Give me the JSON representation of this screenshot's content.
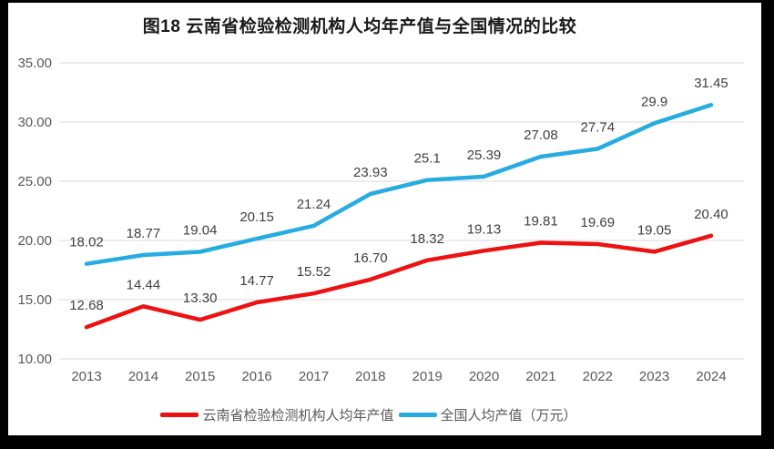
{
  "frame": {
    "border_color": "#000000",
    "background": "#ffffff"
  },
  "chart_data": {
    "type": "line",
    "title": "图18  云南省检验检测机构人均年产值与全国情况的比较",
    "xlabel": "",
    "ylabel": "",
    "categories": [
      "2013",
      "2014",
      "2015",
      "2016",
      "2017",
      "2018",
      "2019",
      "2020",
      "2021",
      "2022",
      "2023",
      "2024"
    ],
    "series": [
      {
        "name": "云南省检验检测机构人均年产值",
        "color": "#ED1111",
        "values": [
          12.68,
          14.44,
          13.3,
          14.77,
          15.52,
          16.7,
          18.32,
          19.13,
          19.81,
          19.69,
          19.05,
          20.4
        ],
        "labels": [
          "12.68",
          "14.44",
          "13.30",
          "14.77",
          "15.52",
          "16.70",
          "18.32",
          "19.13",
          "19.81",
          "19.69",
          "19.05",
          "20.40"
        ]
      },
      {
        "name": "全国人均产值（万元）",
        "color": "#27ACE2",
        "values": [
          18.02,
          18.77,
          19.04,
          20.15,
          21.24,
          23.93,
          25.1,
          25.39,
          27.08,
          27.74,
          29.9,
          31.45
        ],
        "labels": [
          "18.02",
          "18.77",
          "19.04",
          "20.15",
          "21.24",
          "23.93",
          "25.1",
          "25.39",
          "27.08",
          "27.74",
          "29.9",
          "31.45"
        ]
      }
    ],
    "ylim": [
      10,
      35
    ],
    "y_ticks": [
      {
        "value": 10,
        "label": "10.00"
      },
      {
        "value": 15,
        "label": "15.00"
      },
      {
        "value": 20,
        "label": "20.00"
      },
      {
        "value": 25,
        "label": "25.00"
      },
      {
        "value": 30,
        "label": "30.00"
      },
      {
        "value": 35,
        "label": "35.00"
      }
    ],
    "grid": true,
    "legend_position": "bottom",
    "style": {
      "grid_color": "#D9D9D9",
      "tick_color": "#595959",
      "data_label_color": "#404040",
      "title_color": "#1a1a1a"
    }
  }
}
